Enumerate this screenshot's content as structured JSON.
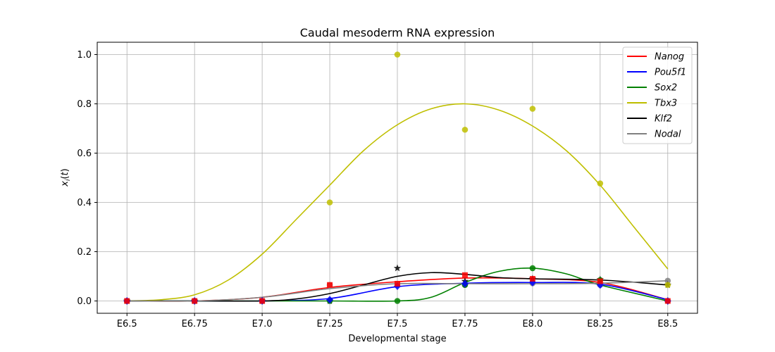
{
  "chart_data": {
    "type": "line",
    "title": "Caudal mesoderm RNA expression",
    "xlabel": "Developmental stage",
    "ylabel": "x_i(t)",
    "x": [
      6.5,
      6.75,
      7.0,
      7.25,
      7.5,
      7.75,
      8.0,
      8.25,
      8.5
    ],
    "x_tick_labels": [
      "E6.5",
      "E6.75",
      "E7.0",
      "E7.25",
      "E7.5",
      "E7.75",
      "E8.0",
      "E8.25",
      "E8.5"
    ],
    "y_ticks": [
      0.0,
      0.2,
      0.4,
      0.6,
      0.8,
      1.0
    ],
    "y_tick_labels": [
      "0.0",
      "0.2",
      "0.4",
      "0.6",
      "0.8",
      "1.0"
    ],
    "xlim": [
      6.39,
      8.61
    ],
    "ylim": [
      -0.05,
      1.05
    ],
    "grid": true,
    "legend_position": "top-right",
    "series": [
      {
        "name": "Nanog",
        "color": "#ff0000",
        "marker": "square",
        "points": [
          0.0,
          0.0,
          0.0,
          0.065,
          0.07,
          0.105,
          0.09,
          0.08,
          0.0
        ],
        "curve": [
          [
            6.5,
            0.0
          ],
          [
            6.75,
            0.0
          ],
          [
            7.0,
            0.015
          ],
          [
            7.25,
            0.055
          ],
          [
            7.5,
            0.078
          ],
          [
            7.75,
            0.093
          ],
          [
            8.0,
            0.09
          ],
          [
            8.25,
            0.075
          ],
          [
            8.5,
            0.005
          ]
        ]
      },
      {
        "name": "Pou5f1",
        "color": "#0000ff",
        "marker": "diamond",
        "points": [
          0.0,
          0.0,
          0.0,
          0.005,
          0.06,
          0.07,
          0.075,
          0.065,
          0.0
        ],
        "curve": [
          [
            6.5,
            0.0
          ],
          [
            6.75,
            0.0
          ],
          [
            7.0,
            0.0
          ],
          [
            7.25,
            0.01
          ],
          [
            7.5,
            0.058
          ],
          [
            7.75,
            0.072
          ],
          [
            8.0,
            0.075
          ],
          [
            8.25,
            0.068
          ],
          [
            8.5,
            0.005
          ]
        ]
      },
      {
        "name": "Sox2",
        "color": "#008000",
        "marker": "circle",
        "points": [
          0.0,
          0.0,
          0.0,
          0.0,
          0.0,
          0.065,
          0.133,
          0.085,
          0.0
        ],
        "curve": [
          [
            6.5,
            0.0
          ],
          [
            6.75,
            0.0
          ],
          [
            7.0,
            0.0
          ],
          [
            7.25,
            0.0
          ],
          [
            7.5,
            0.0
          ],
          [
            7.625,
            0.015
          ],
          [
            7.75,
            0.075
          ],
          [
            7.875,
            0.12
          ],
          [
            8.0,
            0.133
          ],
          [
            8.125,
            0.11
          ],
          [
            8.25,
            0.065
          ],
          [
            8.5,
            0.0
          ]
        ]
      },
      {
        "name": "Tbx3",
        "color": "#bfbf00",
        "marker": "circle",
        "points": [
          0.0,
          0.0,
          0.0,
          0.4,
          1.0,
          0.695,
          0.78,
          0.477,
          0.065
        ],
        "curve": [
          [
            6.5,
            0.0
          ],
          [
            6.625,
            0.005
          ],
          [
            6.75,
            0.025
          ],
          [
            6.875,
            0.085
          ],
          [
            7.0,
            0.19
          ],
          [
            7.125,
            0.33
          ],
          [
            7.25,
            0.47
          ],
          [
            7.375,
            0.61
          ],
          [
            7.5,
            0.715
          ],
          [
            7.625,
            0.78
          ],
          [
            7.75,
            0.8
          ],
          [
            7.875,
            0.775
          ],
          [
            8.0,
            0.71
          ],
          [
            8.125,
            0.61
          ],
          [
            8.25,
            0.47
          ],
          [
            8.375,
            0.3
          ],
          [
            8.5,
            0.13
          ]
        ]
      },
      {
        "name": "Klf2",
        "color": "#000000",
        "marker": "star",
        "points": [
          0.0,
          0.0,
          0.0,
          0.0,
          0.133,
          0.08,
          0.09,
          0.087,
          0.065
        ],
        "curve": [
          [
            6.5,
            0.0
          ],
          [
            6.75,
            0.0
          ],
          [
            7.0,
            0.0
          ],
          [
            7.125,
            0.008
          ],
          [
            7.25,
            0.03
          ],
          [
            7.375,
            0.065
          ],
          [
            7.5,
            0.1
          ],
          [
            7.625,
            0.115
          ],
          [
            7.75,
            0.108
          ],
          [
            7.875,
            0.095
          ],
          [
            8.0,
            0.09
          ],
          [
            8.25,
            0.085
          ],
          [
            8.5,
            0.065
          ]
        ]
      },
      {
        "name": "Nodal",
        "color": "#808080",
        "marker": "circle",
        "points": [
          0.0,
          0.0,
          0.0,
          0.065,
          0.07,
          0.065,
          0.072,
          0.065,
          0.082
        ],
        "curve": [
          [
            6.5,
            0.0
          ],
          [
            6.75,
            0.0
          ],
          [
            7.0,
            0.015
          ],
          [
            7.25,
            0.05
          ],
          [
            7.5,
            0.07
          ],
          [
            7.75,
            0.07
          ],
          [
            8.0,
            0.07
          ],
          [
            8.25,
            0.072
          ],
          [
            8.5,
            0.082
          ]
        ]
      }
    ]
  }
}
